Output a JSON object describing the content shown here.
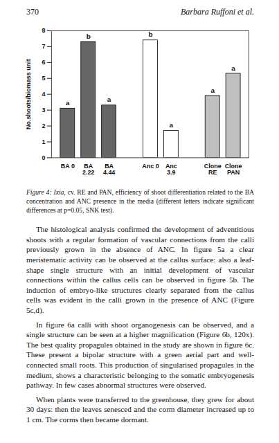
{
  "header": {
    "page": "370",
    "authors": "Barbara Ruffoni et al."
  },
  "chart_data": {
    "type": "bar",
    "categories": [
      "BA 0",
      "BA 2.22",
      "BA 4.44",
      null,
      "Anc 0",
      "Anc 3.9",
      null,
      "Clone RE",
      "Clone PAN"
    ],
    "values": [
      3.1,
      7.3,
      3.3,
      null,
      7.4,
      1.7,
      null,
      3.9,
      5.3
    ],
    "colors": [
      "#666666",
      "#666666",
      "#666666",
      null,
      "#ffffff",
      "#ffffff",
      null,
      "#bfbfbf",
      "#bfbfbf"
    ],
    "annotations": [
      "a",
      "b",
      "a",
      null,
      "b",
      "a",
      null,
      "a",
      "a"
    ],
    "y_label": "No.shoots/biomass unit",
    "ylim": [
      0,
      8
    ],
    "yticks": [
      0,
      1,
      2,
      3,
      4,
      5,
      6,
      7,
      8
    ],
    "grid": false
  },
  "caption": {
    "label": "Figure 4:",
    "species": "Ixia",
    "text": ", cv. RE and PAN, efficiency of shoot differentiation related to the BA concentration and ANC presence in the media (different letters indicate significant differences at p=0.05, SNK test)."
  },
  "paragraphs": [
    "The histological analysis confirmed the development of adventitious shoots with a regular formation of vascular connections from the calli previously grown in the absence of ANC. In figure 5a a clear meristematic activity can be observed at the callus surface: also a leaf-shape single structure with an initial development of vascular connections within the callus cells can be observed in figure 5b. The induction of embryo-like structures clearly separated from the callus cells was evident in the calli grown in the presence of ANC (Figure 5c,d).",
    "In figure 6a calli with shoot organogenesis can be observed, and a single structure can be seen at a higher magnification (Figure 6b, 120x). The best quality propagules obtained in the study are shown in figure 6c. These present a bipolar structure with a green aerial part and well-connected small roots. This production of singularised propagules in the medium, shows a characteristic belonging to the somatic embryogenesis pathway. In few cases abnormal structures were observed.",
    "When plants were transferred to the greenhouse, they grew for about 30 days: then the leaves senesced and the corm diameter increased up to 1 cm. The corms then became dormant."
  ]
}
